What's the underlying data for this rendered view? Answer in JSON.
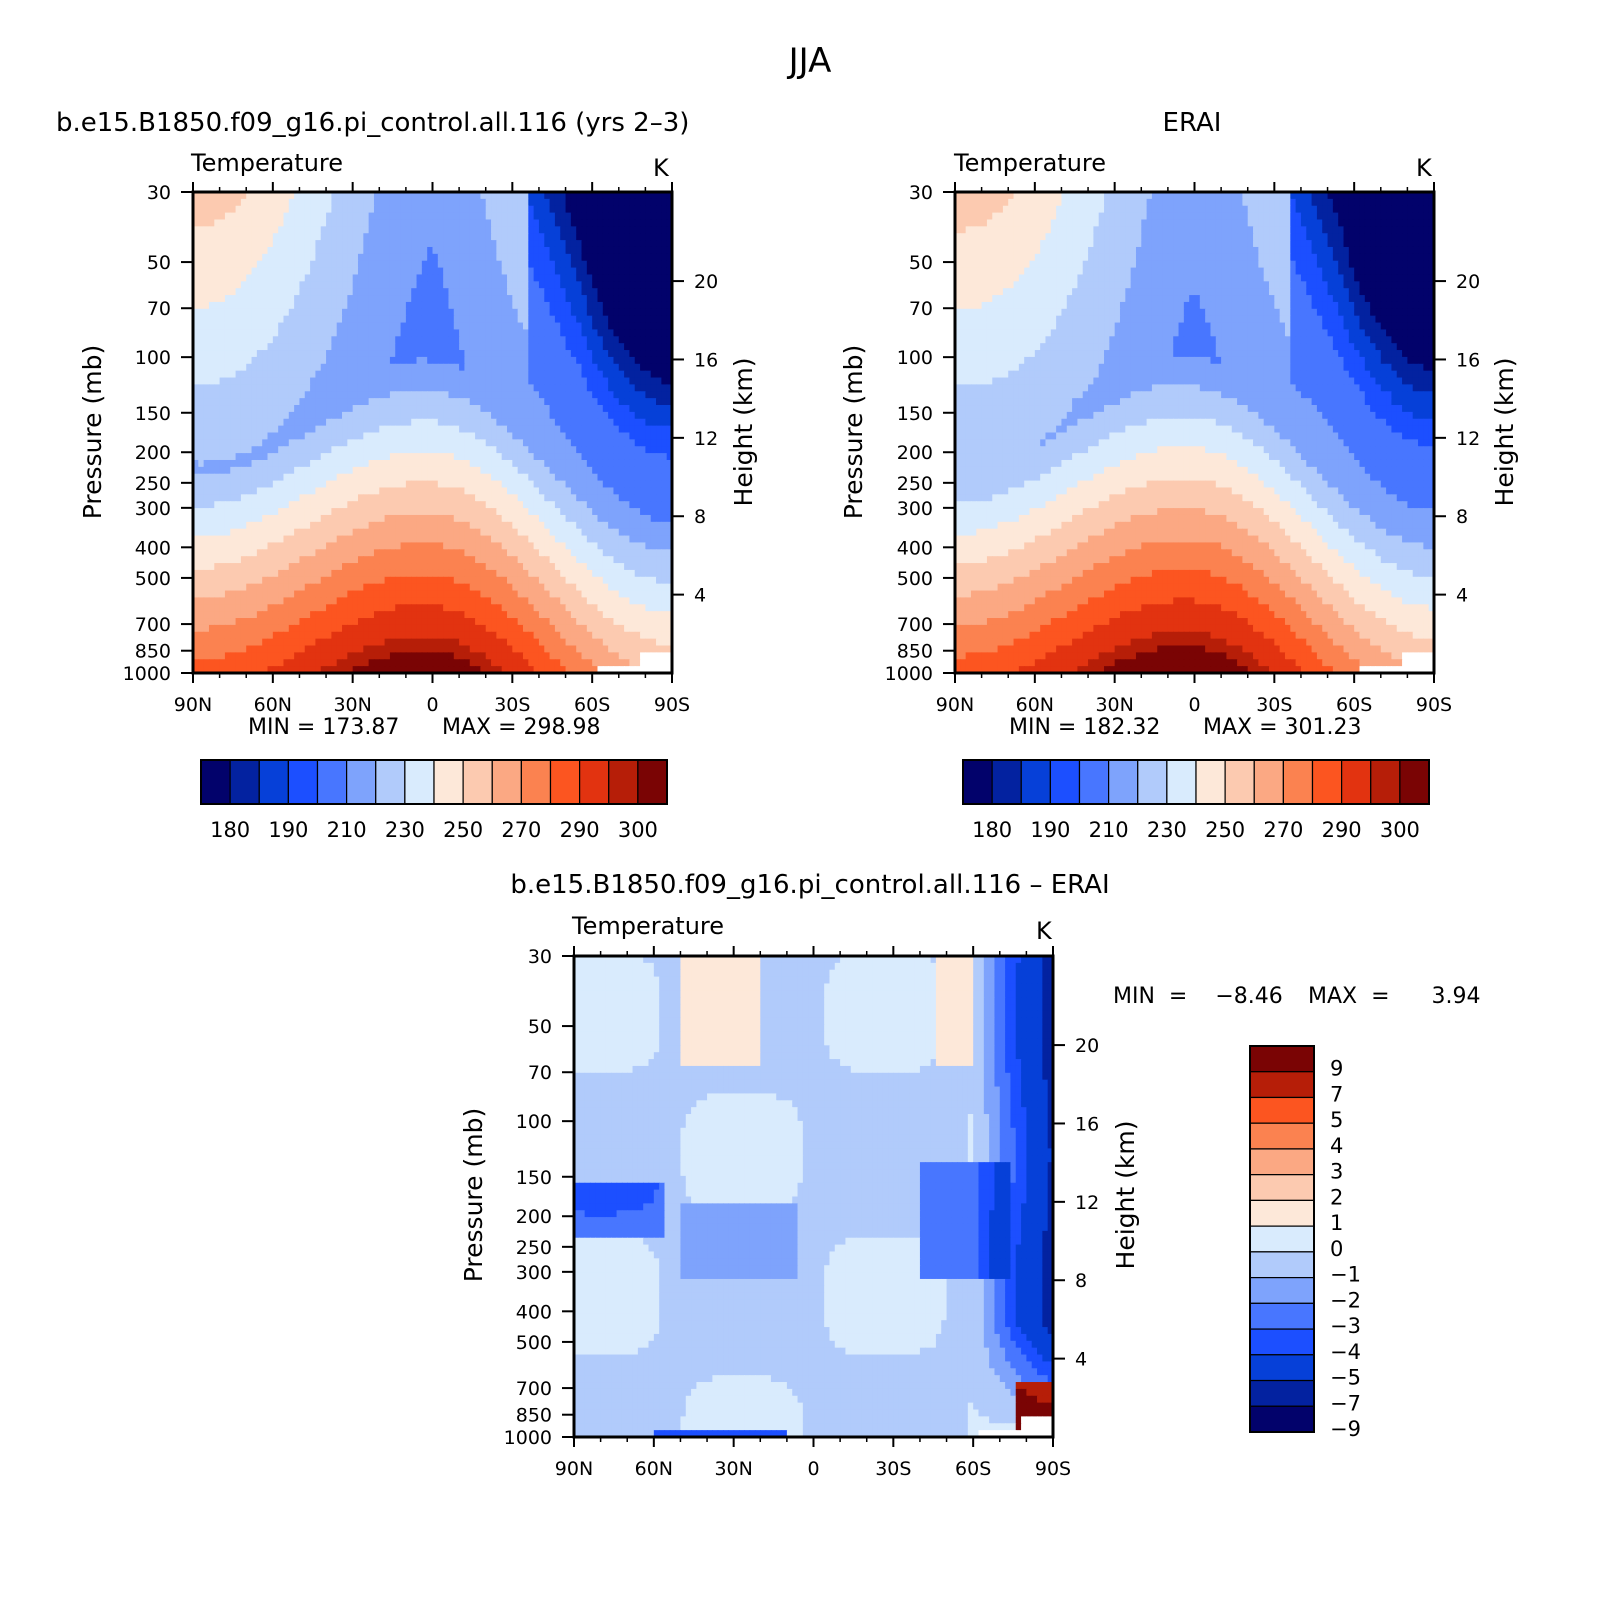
{
  "figure": {
    "season": "JJA"
  },
  "chart_data": [
    {
      "id": "model",
      "type": "heatmap",
      "subtype": "filled-contour latitude-pressure cross-section",
      "title": "b.e15.B1850.f09_g16.pi_control.all.116 (yrs 2–3)",
      "subtitle": "Temperature",
      "units": "K",
      "xlabel": "",
      "ylabel": "Pressure  (mb)",
      "y2label": "Height  (km)",
      "x_ticks": [
        "90N",
        "60N",
        "30N",
        "0",
        "30S",
        "60S",
        "90S"
      ],
      "x_range": [
        90,
        -90
      ],
      "y_ticks": [
        30,
        50,
        70,
        100,
        150,
        200,
        250,
        300,
        400,
        500,
        700,
        850,
        1000
      ],
      "y_range": [
        1000,
        30
      ],
      "y_scale": "log",
      "height_ticks": [
        4,
        8,
        12,
        16,
        20
      ],
      "stats": {
        "min_label": "MIN  =  173.87",
        "max_label": "MAX  =  298.98",
        "min": 173.87,
        "max": 298.98
      },
      "colorbar": {
        "orientation": "horizontal",
        "levels": [
          175,
          180,
          185,
          190,
          200,
          210,
          220,
          230,
          240,
          250,
          260,
          270,
          280,
          290,
          295,
          300
        ],
        "tick_labels": [
          "180",
          "190",
          "210",
          "230",
          "250",
          "270",
          "290",
          "300"
        ]
      }
    },
    {
      "id": "obs",
      "type": "heatmap",
      "subtype": "filled-contour latitude-pressure cross-section",
      "title": "ERAI",
      "subtitle": "Temperature",
      "units": "K",
      "xlabel": "",
      "ylabel": "Pressure  (mb)",
      "y2label": "Height  (km)",
      "x_ticks": [
        "90N",
        "60N",
        "30N",
        "0",
        "30S",
        "60S",
        "90S"
      ],
      "x_range": [
        90,
        -90
      ],
      "y_ticks": [
        30,
        50,
        70,
        100,
        150,
        200,
        250,
        300,
        400,
        500,
        700,
        850,
        1000
      ],
      "y_range": [
        1000,
        30
      ],
      "y_scale": "log",
      "height_ticks": [
        4,
        8,
        12,
        16,
        20
      ],
      "stats": {
        "min_label": "MIN  =  182.32",
        "max_label": "MAX  =  301.23",
        "min": 182.32,
        "max": 301.23
      },
      "colorbar": {
        "orientation": "horizontal",
        "levels": [
          175,
          180,
          185,
          190,
          200,
          210,
          220,
          230,
          240,
          250,
          260,
          270,
          280,
          290,
          295,
          300
        ],
        "tick_labels": [
          "180",
          "190",
          "210",
          "230",
          "250",
          "270",
          "290",
          "300"
        ]
      }
    },
    {
      "id": "diff",
      "type": "heatmap",
      "subtype": "filled-contour latitude-pressure cross-section (difference)",
      "title": "b.e15.B1850.f09_g16.pi_control.all.116 – ERAI",
      "subtitle": "Temperature",
      "units": "K",
      "xlabel": "",
      "ylabel": "Pressure  (mb)",
      "y2label": "Height  (km)",
      "x_ticks": [
        "90N",
        "60N",
        "30N",
        "0",
        "30S",
        "60S",
        "90S"
      ],
      "x_range": [
        90,
        -90
      ],
      "y_ticks": [
        30,
        50,
        70,
        100,
        150,
        200,
        250,
        300,
        400,
        500,
        700,
        850,
        1000
      ],
      "y_range": [
        1000,
        30
      ],
      "y_scale": "log",
      "height_ticks": [
        4,
        8,
        12,
        16,
        20
      ],
      "stats": {
        "min_label": "MIN  =    −8.46",
        "max_label": "MAX  =      3.94",
        "min": -8.46,
        "max": 3.94
      },
      "colorbar": {
        "orientation": "vertical",
        "levels": [
          -9,
          -7,
          -5,
          -4,
          -3,
          -2,
          -1,
          0,
          1,
          2,
          3,
          4,
          5,
          7,
          9
        ],
        "tick_labels": [
          "9",
          "7",
          "5",
          "4",
          "3",
          "2",
          "1",
          "0",
          "−1",
          "−2",
          "−3",
          "−4",
          "−5",
          "−7",
          "−9"
        ]
      }
    }
  ],
  "colors": {
    "abs_palette": [
      "#02026b",
      "#0322a0",
      "#0640d8",
      "#1c4fff",
      "#4876ff",
      "#7ea3fc",
      "#b1cbfb",
      "#d9ebfd",
      "#fde8d9",
      "#fccab0",
      "#fba883",
      "#fb8250",
      "#fc5520",
      "#e23310",
      "#b61e08",
      "#7a0404"
    ],
    "diff_palette": [
      "#02026b",
      "#0322a0",
      "#0640d8",
      "#1c4fff",
      "#4876ff",
      "#7ea3fc",
      "#b1cbfb",
      "#d9ebfd",
      "#fde8d9",
      "#fccab0",
      "#fba883",
      "#fb8250",
      "#fc5520",
      "#b61e08",
      "#7a0404"
    ],
    "missing": "#ffffff"
  }
}
